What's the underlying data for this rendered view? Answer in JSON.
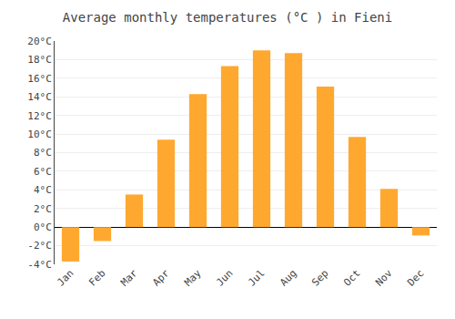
{
  "chart_data": {
    "type": "bar",
    "title": "Average monthly temperatures (°C ) in Fieni",
    "categories": [
      "Jan",
      "Feb",
      "Mar",
      "Apr",
      "May",
      "Jun",
      "Jul",
      "Aug",
      "Sep",
      "Oct",
      "Nov",
      "Dec"
    ],
    "values": [
      -3.7,
      -1.5,
      3.5,
      9.4,
      14.3,
      17.3,
      19.0,
      18.7,
      15.1,
      9.7,
      4.1,
      -0.9
    ],
    "color": "#FFA830",
    "ylim": [
      -4,
      20
    ],
    "yticks": [
      {
        "value": -4,
        "label": "-4°C"
      },
      {
        "value": -2,
        "label": "-2°C"
      },
      {
        "value": 0,
        "label": "0°C"
      },
      {
        "value": 2,
        "label": "2°C"
      },
      {
        "value": 4,
        "label": "4°C"
      },
      {
        "value": 6,
        "label": "6°C"
      },
      {
        "value": 8,
        "label": "8°C"
      },
      {
        "value": 10,
        "label": "10°C"
      },
      {
        "value": 12,
        "label": "12°C"
      },
      {
        "value": 14,
        "label": "14°C"
      },
      {
        "value": 16,
        "label": "16°C"
      },
      {
        "value": 18,
        "label": "18°C"
      },
      {
        "value": 20,
        "label": "20°C"
      }
    ],
    "grid": true
  }
}
